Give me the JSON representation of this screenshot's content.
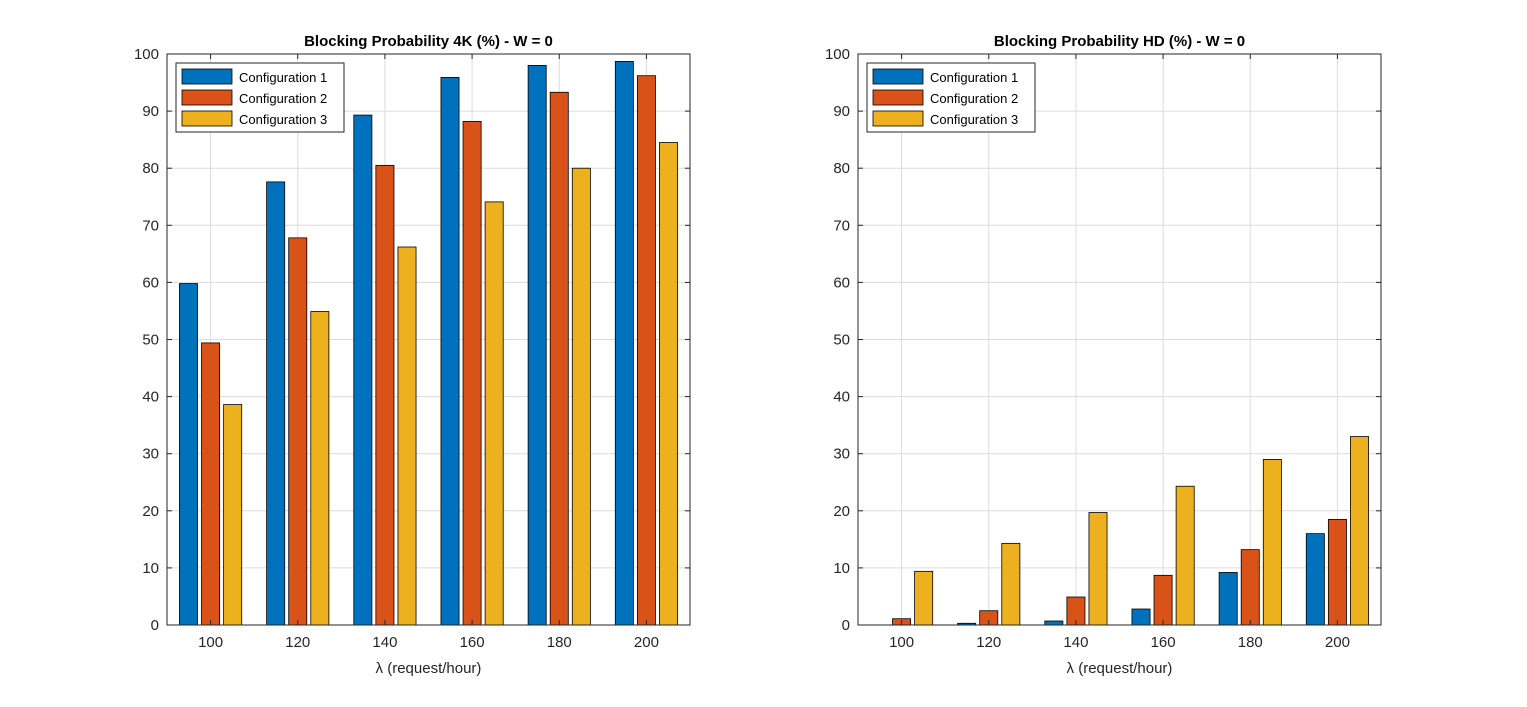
{
  "chart_data": [
    {
      "type": "bar",
      "title": "Blocking Probability 4K (%) - W = 0",
      "xlabel": "λ (request/hour)",
      "ylabel": "",
      "categories": [
        "100",
        "120",
        "140",
        "160",
        "180",
        "200"
      ],
      "ylim": [
        0,
        100
      ],
      "yticks": [
        0,
        10,
        20,
        30,
        40,
        50,
        60,
        70,
        80,
        90,
        100
      ],
      "grid": true,
      "legend_position": "top-left",
      "series": [
        {
          "name": "Configuration 1",
          "color": "#0072BD",
          "values": [
            59.8,
            77.6,
            89.3,
            95.9,
            98.0,
            98.7
          ]
        },
        {
          "name": "Configuration 2",
          "color": "#D95319",
          "values": [
            49.4,
            67.8,
            80.5,
            88.2,
            93.3,
            96.2
          ]
        },
        {
          "name": "Configuration 3",
          "color": "#EDB120",
          "values": [
            38.6,
            54.9,
            66.2,
            74.1,
            80.0,
            84.5
          ]
        }
      ]
    },
    {
      "type": "bar",
      "title": "Blocking Probability HD (%) - W = 0",
      "xlabel": "λ (request/hour)",
      "ylabel": "",
      "categories": [
        "100",
        "120",
        "140",
        "160",
        "180",
        "200"
      ],
      "ylim": [
        0,
        100
      ],
      "yticks": [
        0,
        10,
        20,
        30,
        40,
        50,
        60,
        70,
        80,
        90,
        100
      ],
      "grid": true,
      "legend_position": "top-left",
      "series": [
        {
          "name": "Configuration 1",
          "color": "#0072BD",
          "values": [
            0.0,
            0.3,
            0.7,
            2.8,
            9.2,
            16.0
          ]
        },
        {
          "name": "Configuration 2",
          "color": "#D95319",
          "values": [
            1.1,
            2.5,
            4.9,
            8.7,
            13.2,
            18.5
          ]
        },
        {
          "name": "Configuration 3",
          "color": "#EDB120",
          "values": [
            9.4,
            14.3,
            19.7,
            24.3,
            29.0,
            33.0
          ]
        }
      ]
    }
  ]
}
